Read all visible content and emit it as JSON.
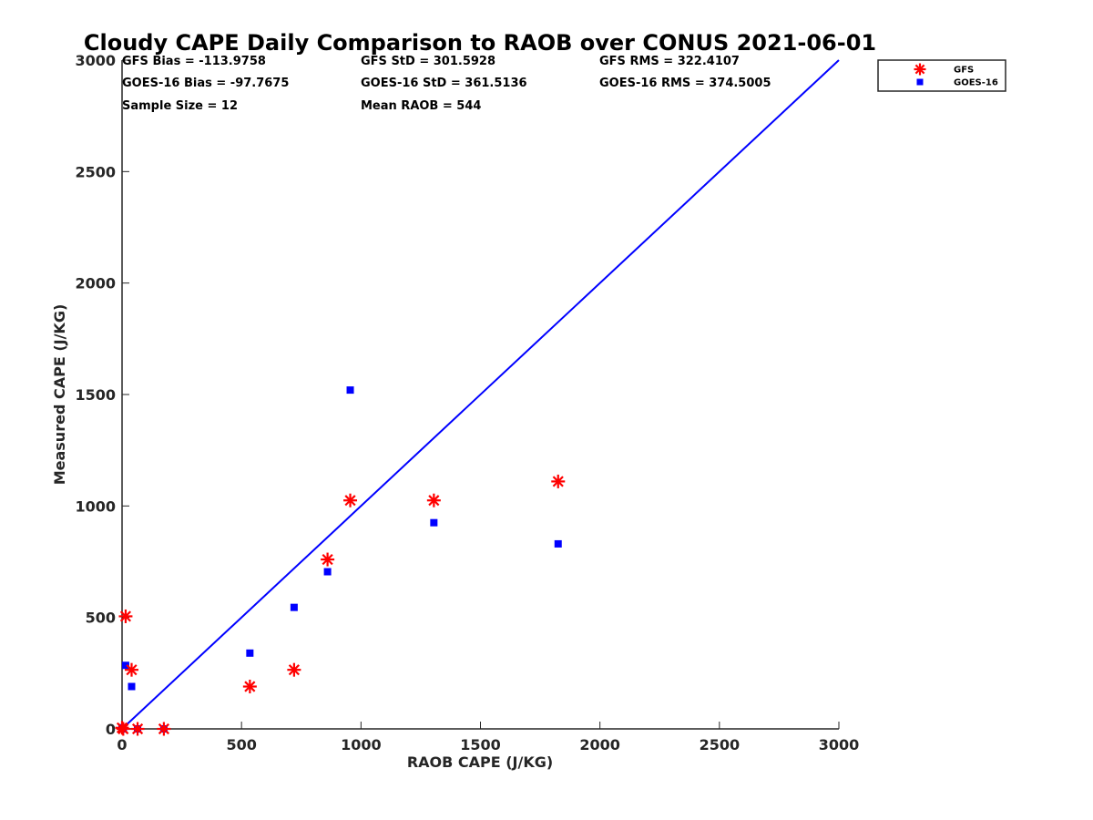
{
  "chart_data": {
    "type": "scatter",
    "title": "Cloudy CAPE Daily Comparison to RAOB over CONUS 2021-06-01",
    "xlabel": "RAOB CAPE (J/KG)",
    "ylabel": "Measured CAPE (J/KG)",
    "xlim": [
      0,
      3000
    ],
    "ylim": [
      0,
      3000
    ],
    "xticks": [
      0,
      500,
      1000,
      1500,
      2000,
      2500,
      3000
    ],
    "yticks": [
      0,
      500,
      1000,
      1500,
      2000,
      2500,
      3000
    ],
    "grid": false,
    "legend_position": "top-right, outside plot",
    "stats": [
      [
        "GFS Bias = -113.9758",
        "GFS StD = 301.5928",
        "GFS RMS = 322.4107"
      ],
      [
        "GOES-16 Bias = -97.7675",
        "GOES-16 StD = 361.5136",
        "GOES-16 RMS = 374.5005"
      ],
      [
        "Sample Size = 12",
        "Mean RAOB = 544",
        ""
      ]
    ],
    "reference_line": {
      "x": [
        0,
        3000
      ],
      "y": [
        0,
        3000
      ],
      "color": "#0000ff"
    },
    "series": [
      {
        "name": "GFS",
        "marker": "asterisk",
        "color": "#ff0000",
        "points": [
          [
            0,
            5
          ],
          [
            5,
            0
          ],
          [
            15,
            505
          ],
          [
            40,
            265
          ],
          [
            65,
            0
          ],
          [
            175,
            0
          ],
          [
            535,
            190
          ],
          [
            720,
            265
          ],
          [
            860,
            760
          ],
          [
            955,
            1025
          ],
          [
            1305,
            1025
          ],
          [
            1825,
            1110
          ]
        ]
      },
      {
        "name": "GOES-16",
        "marker": "square",
        "color": "#0000ff",
        "points": [
          [
            0,
            0
          ],
          [
            5,
            5
          ],
          [
            15,
            285
          ],
          [
            40,
            190
          ],
          [
            65,
            0
          ],
          [
            175,
            0
          ],
          [
            535,
            340
          ],
          [
            720,
            545
          ],
          [
            860,
            705
          ],
          [
            955,
            1520
          ],
          [
            1305,
            925
          ],
          [
            1825,
            830
          ]
        ]
      }
    ]
  }
}
